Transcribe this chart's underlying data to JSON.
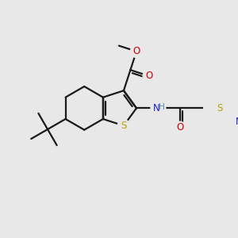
{
  "bg_color": "#e8e8e8",
  "bond_color": "#1a1a1a",
  "bond_lw": 1.6,
  "atom_colors": {
    "S": "#b8a000",
    "N": "#2020cc",
    "O": "#cc0000",
    "H": "#5588aa",
    "C": "#1a1a1a"
  },
  "fs": 8.5
}
